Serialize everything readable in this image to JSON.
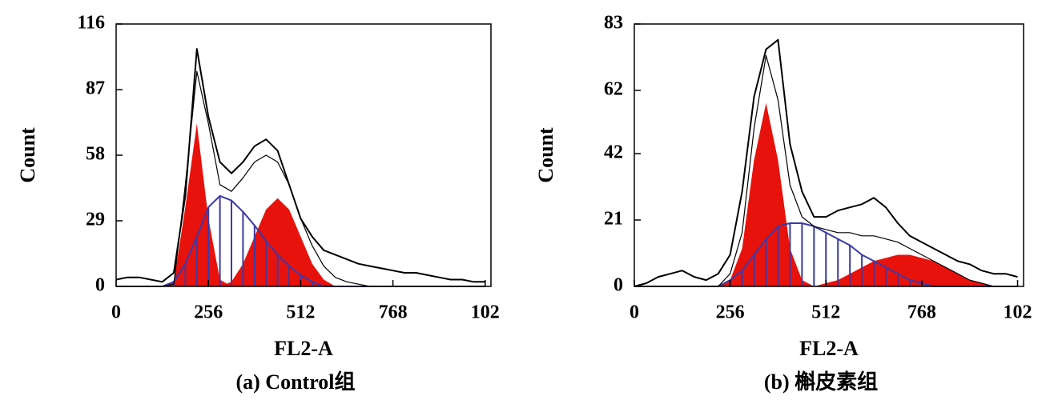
{
  "chart_data": [
    {
      "type": "line",
      "caption": "(a) Control组",
      "xlabel": "FL2-A",
      "ylabel": "Count",
      "x": [
        0,
        32,
        64,
        96,
        128,
        160,
        192,
        224,
        256,
        288,
        320,
        352,
        384,
        416,
        448,
        480,
        512,
        544,
        576,
        608,
        640,
        672,
        704,
        736,
        768,
        800,
        832,
        864,
        896,
        928,
        960,
        992,
        1024
      ],
      "xlim": [
        0,
        1040
      ],
      "ylim": [
        0,
        116
      ],
      "xticks": [
        0,
        256,
        512,
        768,
        {
          "value": 1024,
          "label": "102"
        }
      ],
      "yticks": [
        0,
        29,
        58,
        87,
        116
      ],
      "series": [
        {
          "color": "#e8120c",
          "fill": true,
          "values": [
            0,
            0,
            0,
            0,
            0,
            2,
            35,
            72,
            30,
            3,
            0,
            0,
            0,
            0,
            0,
            0,
            0,
            0,
            0,
            0,
            0,
            0,
            0,
            0,
            0,
            0,
            0,
            0,
            0,
            0,
            0,
            0,
            0
          ]
        },
        {
          "color": "#e8120c",
          "fill": true,
          "values": [
            0,
            0,
            0,
            0,
            0,
            0,
            0,
            0,
            0,
            0,
            2,
            10,
            22,
            34,
            39,
            34,
            22,
            10,
            3,
            0,
            0,
            0,
            0,
            0,
            0,
            0,
            0,
            0,
            0,
            0,
            0,
            0,
            0
          ]
        },
        {
          "color": "#3a3aa8",
          "hatch": true,
          "values": [
            0,
            0,
            0,
            0,
            0,
            2,
            10,
            22,
            35,
            40,
            38,
            33,
            27,
            20,
            14,
            9,
            5,
            2,
            0,
            0,
            0,
            0,
            0,
            0,
            0,
            0,
            0,
            0,
            0,
            0,
            0,
            0,
            0
          ]
        },
        {
          "color": "#000000",
          "width": 1.2,
          "values": [
            0,
            0,
            0,
            0,
            0,
            1,
            45,
            95,
            72,
            45,
            42,
            48,
            55,
            58,
            55,
            45,
            30,
            18,
            9,
            4,
            2,
            1,
            0,
            0,
            0,
            0,
            0,
            0,
            0,
            0,
            0,
            0,
            0
          ]
        },
        {
          "color": "#000000",
          "width": 2,
          "values": [
            3,
            4,
            4,
            3,
            2,
            6,
            40,
            105,
            75,
            55,
            50,
            55,
            62,
            65,
            60,
            45,
            30,
            22,
            16,
            14,
            12,
            10,
            9,
            8,
            7,
            6,
            6,
            5,
            4,
            3,
            3,
            2,
            2
          ]
        }
      ]
    },
    {
      "type": "line",
      "caption": "(b) 槲皮素组",
      "xlabel": "FL2-A",
      "ylabel": "Count",
      "x": [
        0,
        32,
        64,
        96,
        128,
        160,
        192,
        224,
        256,
        288,
        320,
        352,
        384,
        416,
        448,
        480,
        512,
        544,
        576,
        608,
        640,
        672,
        704,
        736,
        768,
        800,
        832,
        864,
        896,
        928,
        960,
        992,
        1024
      ],
      "xlim": [
        0,
        1040
      ],
      "ylim": [
        0,
        83
      ],
      "xticks": [
        0,
        256,
        512,
        768,
        {
          "value": 1024,
          "label": "102"
        }
      ],
      "yticks": [
        0,
        21,
        42,
        62,
        83
      ],
      "series": [
        {
          "color": "#e8120c",
          "fill": true,
          "values": [
            0,
            0,
            0,
            0,
            0,
            0,
            0,
            0,
            2,
            12,
            40,
            58,
            40,
            12,
            2,
            0,
            0,
            0,
            0,
            0,
            0,
            0,
            0,
            0,
            0,
            0,
            0,
            0,
            0,
            0,
            0,
            0,
            0
          ]
        },
        {
          "color": "#e8120c",
          "fill": true,
          "values": [
            0,
            0,
            0,
            0,
            0,
            0,
            0,
            0,
            0,
            0,
            0,
            0,
            0,
            0,
            0,
            0,
            1,
            2,
            4,
            6,
            8,
            9,
            10,
            10,
            9,
            8,
            6,
            4,
            2,
            1,
            0,
            0,
            0
          ]
        },
        {
          "color": "#3a3aa8",
          "hatch": true,
          "values": [
            0,
            0,
            0,
            0,
            0,
            0,
            0,
            0,
            2,
            5,
            10,
            15,
            19,
            20,
            20,
            19,
            17,
            15,
            13,
            10,
            8,
            6,
            4,
            2,
            1,
            0,
            0,
            0,
            0,
            0,
            0,
            0,
            0
          ]
        },
        {
          "color": "#000000",
          "width": 1.2,
          "values": [
            0,
            0,
            0,
            0,
            0,
            0,
            0,
            0,
            4,
            17,
            50,
            73,
            59,
            32,
            22,
            19,
            18,
            17,
            17,
            16,
            16,
            15,
            14,
            12,
            10,
            8,
            6,
            4,
            2,
            1,
            0,
            0,
            0
          ]
        },
        {
          "color": "#000000",
          "width": 2,
          "values": [
            0,
            1,
            3,
            4,
            5,
            3,
            2,
            4,
            10,
            30,
            60,
            75,
            78,
            45,
            30,
            22,
            22,
            24,
            25,
            26,
            28,
            25,
            20,
            16,
            14,
            12,
            10,
            8,
            7,
            5,
            4,
            4,
            3
          ]
        }
      ]
    }
  ]
}
